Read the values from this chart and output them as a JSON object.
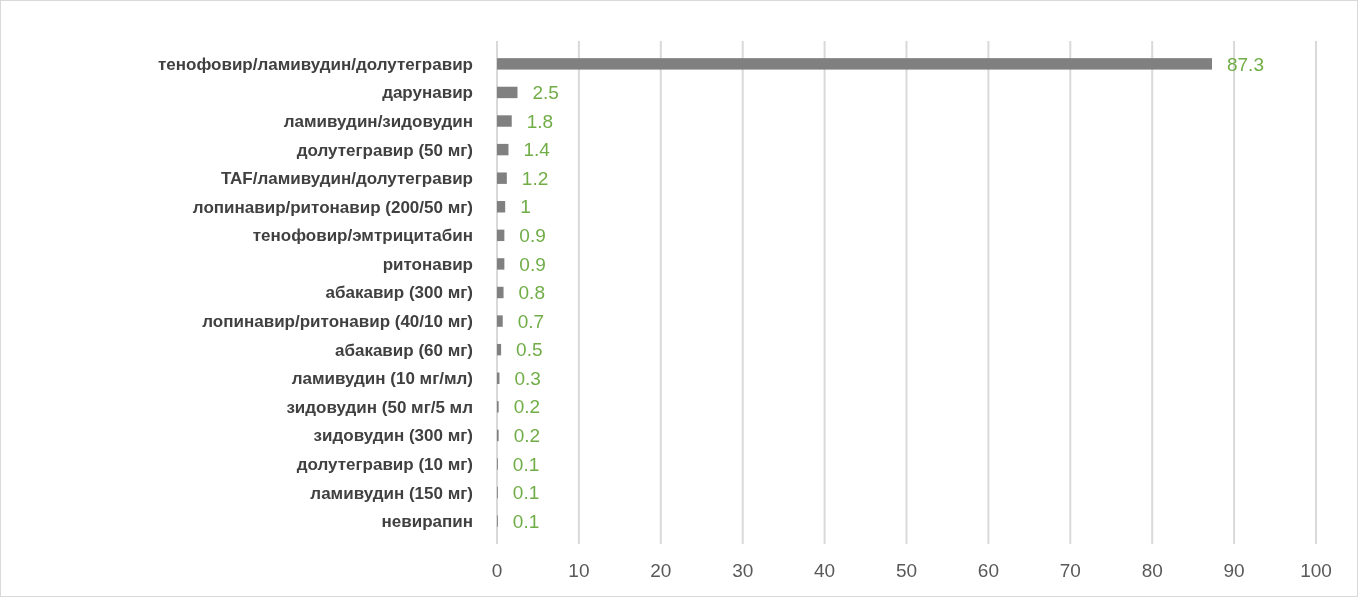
{
  "chart_data": {
    "type": "bar",
    "orientation": "horizontal",
    "categories": [
      "тенофовир/ламивудин/долутегравир",
      "дарунавир",
      "ламивудин/зидовудин",
      "долутегравир (50 мг)",
      "TAF/ламивудин/долутегравир",
      "лопинавир/ритонавир (200/50 мг)",
      "тенофовир/эмтрицитабин",
      "ритонавир",
      "абакавир (300 мг)",
      "лопинавир/ритонавир (40/10 мг)",
      "абакавир (60 мг)",
      "ламивудин (10 мг/мл)",
      "зидовудин (50 мг/5 мл",
      "зидовудин (300 мг)",
      "долутегравир (10 мг)",
      "ламивудин (150 мг)",
      "невирапин"
    ],
    "values": [
      87.3,
      2.5,
      1.8,
      1.4,
      1.2,
      1,
      0.9,
      0.9,
      0.8,
      0.7,
      0.5,
      0.3,
      0.2,
      0.2,
      0.1,
      0.1,
      0.1
    ],
    "color": "#808080",
    "data_labels": true,
    "xlim": [
      0,
      100
    ],
    "xticks": [
      0,
      10,
      20,
      30,
      40,
      50,
      60,
      70,
      80,
      90,
      100
    ],
    "grid": "x"
  }
}
